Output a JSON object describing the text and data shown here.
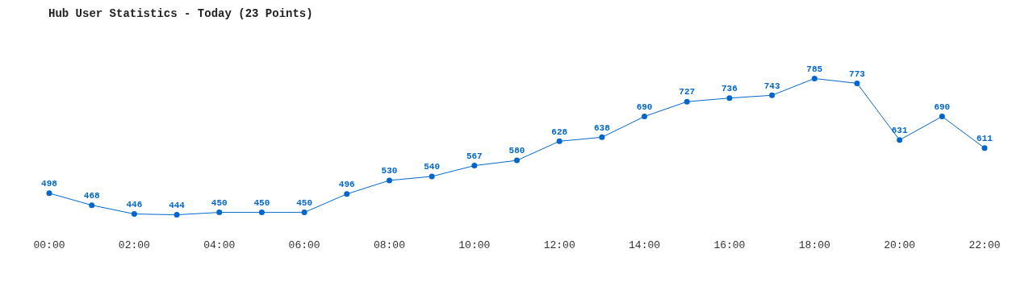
{
  "chart_data": {
    "type": "line",
    "title": "Hub User Statistics - Today (23 Points)",
    "categories": [
      "00:00",
      null,
      "02:00",
      null,
      "04:00",
      null,
      "06:00",
      null,
      "08:00",
      null,
      "10:00",
      null,
      "12:00",
      null,
      "14:00",
      null,
      "16:00",
      null,
      "18:00",
      null,
      "20:00",
      null,
      "22:00"
    ],
    "series": [
      {
        "color": "#0066cc",
        "values": [
          498,
          468,
          446,
          444,
          450,
          450,
          450,
          496,
          530,
          540,
          567,
          580,
          628,
          638,
          690,
          727,
          736,
          743,
          785,
          773,
          631,
          690,
          611
        ]
      }
    ],
    "data_labels": true,
    "marker": "circle",
    "line_style": "solid",
    "grid": false,
    "legend": false,
    "tick_labels": "x"
  }
}
